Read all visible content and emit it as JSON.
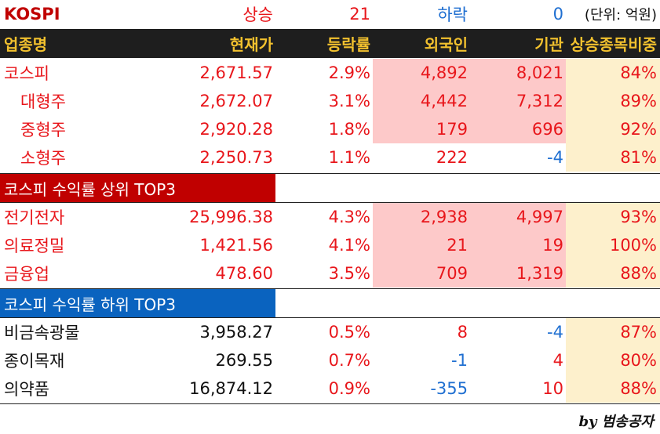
{
  "top": {
    "market": "KOSPI",
    "up_label": "상승",
    "up_count": "21",
    "down_label": "하락",
    "down_count": "0",
    "unit": "(단위: 억원)"
  },
  "header": {
    "col1": "업종명",
    "col2": "현재가",
    "col3": "등락률",
    "col4": "외국인",
    "col5": "기관",
    "col6": "상승종목비중"
  },
  "kospi_rows": [
    {
      "name": "코스피",
      "price": "2,671.57",
      "change": "2.9%",
      "foreign": "4,892",
      "inst": "8,021",
      "ratio": "84%"
    },
    {
      "name": "대형주",
      "price": "2,672.07",
      "change": "3.1%",
      "foreign": "4,442",
      "inst": "7,312",
      "ratio": "89%"
    },
    {
      "name": "중형주",
      "price": "2,920.28",
      "change": "1.8%",
      "foreign": "179",
      "inst": "696",
      "ratio": "92%"
    },
    {
      "name": "소형주",
      "price": "2,250.73",
      "change": "1.1%",
      "foreign": "222",
      "inst": "-4",
      "ratio": "81%"
    }
  ],
  "top3_title": "코스피 수익률 상위 TOP3",
  "top3_rows": [
    {
      "name": "전기전자",
      "price": "25,996.38",
      "change": "4.3%",
      "foreign": "2,938",
      "inst": "4,997",
      "ratio": "93%"
    },
    {
      "name": "의료정밀",
      "price": "1,421.56",
      "change": "4.1%",
      "foreign": "21",
      "inst": "19",
      "ratio": "100%"
    },
    {
      "name": "금융업",
      "price": "478.60",
      "change": "3.5%",
      "foreign": "709",
      "inst": "1,319",
      "ratio": "88%"
    }
  ],
  "bottom3_title": "코스피 수익률 하위 TOP3",
  "bottom3_rows": [
    {
      "name": "비금속광물",
      "price": "3,958.27",
      "change": "0.5%",
      "foreign": "8",
      "inst": "-4",
      "ratio": "87%"
    },
    {
      "name": "종이목재",
      "price": "269.55",
      "change": "0.7%",
      "foreign": "-1",
      "inst": "4",
      "ratio": "80%"
    },
    {
      "name": "의약품",
      "price": "16,874.12",
      "change": "0.9%",
      "foreign": "-355",
      "inst": "10",
      "ratio": "88%"
    }
  ],
  "credit": "by 범송공자",
  "colors": {
    "up": "#e8161b",
    "down": "#1f6fd1",
    "header_bg": "#1e1e1e",
    "header_text": "#f2c12e",
    "pink": "#fdc9c9",
    "cream": "#fdf0cc",
    "section_red": "#c00000",
    "section_blue": "#0a63bf"
  }
}
